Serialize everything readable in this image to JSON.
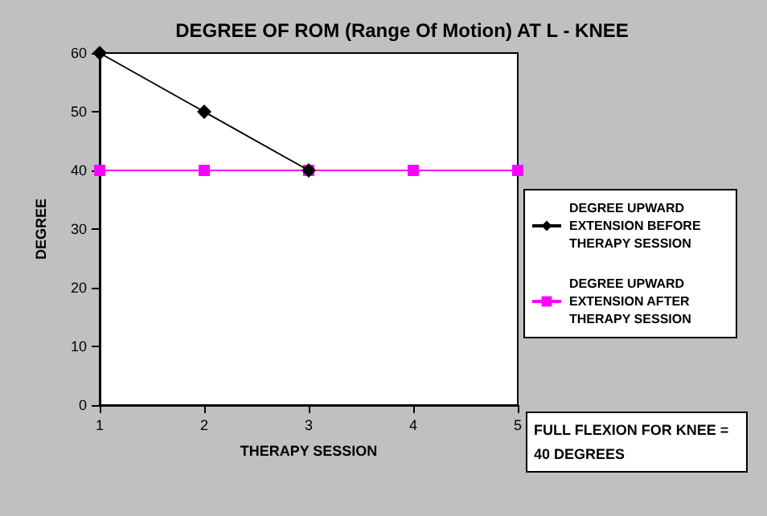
{
  "chart_data": {
    "type": "line",
    "title": "DEGREE OF ROM (Range Of Motion) AT L - KNEE",
    "xlabel": "THERAPY SESSION",
    "ylabel": "DEGREE",
    "xlim": [
      1,
      5
    ],
    "xticks": [
      1,
      2,
      3,
      4,
      5
    ],
    "ylim": [
      0,
      60
    ],
    "yticks": [
      0,
      10,
      20,
      30,
      40,
      50,
      60
    ],
    "grid": false,
    "legend": "right",
    "series": [
      {
        "name": "DEGREE UPWARD EXTENSION BEFORE THERAPY SESSION",
        "color": "#000000",
        "marker": "diamond",
        "x": [
          1,
          2,
          3
        ],
        "values": [
          60,
          50,
          40
        ]
      },
      {
        "name": "DEGREE UPWARD EXTENSION AFTER THERAPY SESSION",
        "color": "#ff00ff",
        "marker": "square",
        "x": [
          1,
          2,
          3,
          4,
          5
        ],
        "values": [
          40,
          40,
          40,
          40,
          40
        ]
      }
    ],
    "annotations": [
      "FULL FLEXION FOR KNEE = 40 DEGREES"
    ]
  }
}
